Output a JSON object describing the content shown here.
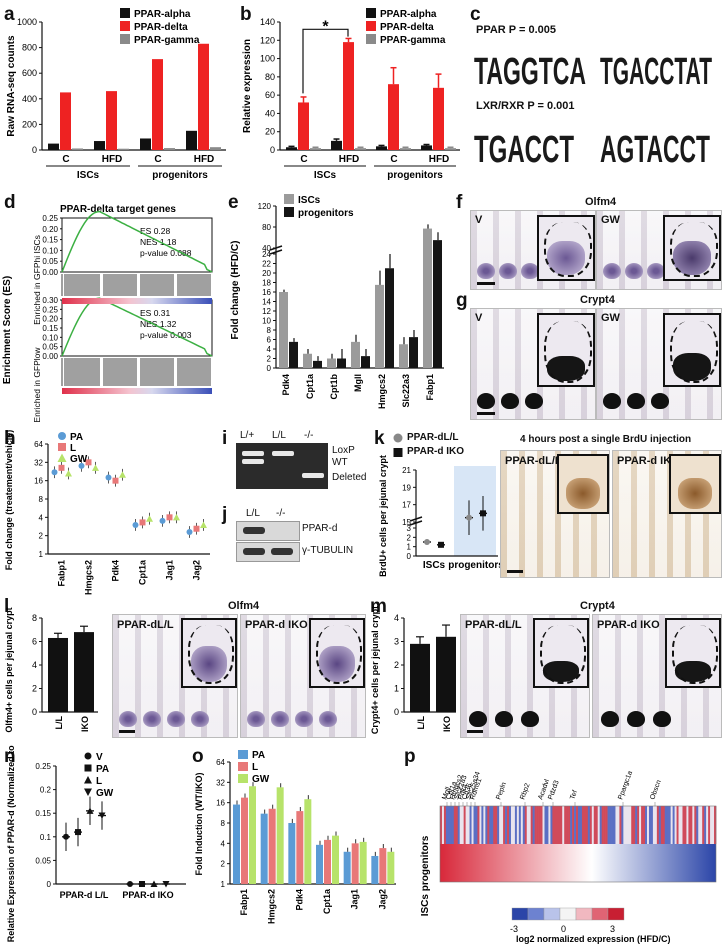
{
  "panel_labels": {
    "a": "a",
    "b": "b",
    "c": "c",
    "d": "d",
    "e": "e",
    "f": "f",
    "g": "g",
    "h": "h",
    "i": "i",
    "j": "j",
    "k": "k",
    "l": "l",
    "m": "m",
    "n": "n",
    "o": "o",
    "p": "p"
  },
  "colors": {
    "alpha": "#111111",
    "delta": "#ee2222",
    "gamma": "#8a8a8a",
    "isc": "#9b9b9b",
    "prog": "#151515",
    "pa": "#5b9bd5",
    "l": "#e87878",
    "gw": "#b7e36a",
    "gsea": "#3cb043"
  },
  "chart_data": [
    {
      "id": "a",
      "type": "bar",
      "ylabel": "Raw RNA-seq counts",
      "ylim": [
        0,
        1000
      ],
      "yticks": [
        0,
        200,
        400,
        600,
        800,
        1000
      ],
      "groups": [
        "C",
        "HFD",
        "C",
        "HFD"
      ],
      "group_labels": [
        "ISCs",
        "progenitors"
      ],
      "series": [
        {
          "name": "PPAR-alpha",
          "values": [
            50,
            70,
            90,
            150
          ]
        },
        {
          "name": "PPAR-delta",
          "values": [
            450,
            460,
            710,
            830
          ]
        },
        {
          "name": "PPAR-gamma",
          "values": [
            12,
            10,
            15,
            22
          ]
        }
      ]
    },
    {
      "id": "b",
      "type": "bar",
      "ylabel": "Relative expression",
      "ylim": [
        0,
        140
      ],
      "yticks": [
        0,
        20,
        40,
        60,
        80,
        100,
        120,
        140
      ],
      "groups": [
        "C",
        "HFD",
        "C",
        "HFD"
      ],
      "group_labels": [
        "ISCs",
        "progenitors"
      ],
      "annotation": "*",
      "series": [
        {
          "name": "PPAR-alpha",
          "values": [
            3,
            10,
            4,
            5
          ],
          "err": [
            1,
            2,
            1,
            1
          ]
        },
        {
          "name": "PPAR-delta",
          "values": [
            52,
            118,
            72,
            68
          ],
          "err": [
            6,
            4,
            18,
            15
          ]
        },
        {
          "name": "PPAR-gamma",
          "values": [
            2,
            2,
            2,
            2
          ],
          "err": [
            1,
            1,
            1,
            1
          ]
        }
      ]
    },
    {
      "id": "e",
      "type": "bar",
      "ylabel": "Fold change (HFD/C)",
      "yticks_low": [
        0,
        2,
        4,
        6,
        8,
        10,
        12,
        14,
        16,
        18,
        20,
        22,
        24
      ],
      "yticks_high": [
        40,
        80,
        120
      ],
      "categories": [
        "Pdk4",
        "Cpt1a",
        "Cpt1b",
        "Mgll",
        "Hmgcs2",
        "Slc22a3",
        "Fabp1"
      ],
      "series": [
        {
          "name": "ISCs",
          "values": [
            16,
            3,
            2,
            5.5,
            17.5,
            5,
            77
          ],
          "err": [
            0.5,
            1,
            1,
            1.5,
            3,
            1.5,
            8
          ]
        },
        {
          "name": "progenitors",
          "values": [
            5.5,
            1.5,
            2,
            2.5,
            21,
            6.5,
            55
          ],
          "err": [
            0.8,
            1,
            2,
            1.5,
            3,
            1.5,
            15
          ]
        }
      ]
    },
    {
      "id": "h",
      "type": "scatter",
      "ylabel": "Fold change (treatement/vehicle)",
      "yticks": [
        1,
        2,
        4,
        8,
        16,
        32,
        64
      ],
      "log": true,
      "categories": [
        "Fabp1",
        "Hmgcs2",
        "Pdk4",
        "Cpt1a",
        "Jag1",
        "Jag2"
      ],
      "series": [
        {
          "name": "PA",
          "values": [
            22,
            28,
            18,
            3,
            3.5,
            2.3
          ]
        },
        {
          "name": "L",
          "values": [
            26,
            32,
            16,
            3.3,
            4,
            2.6
          ]
        },
        {
          "name": "GW",
          "values": [
            21,
            26,
            20,
            3.8,
            4,
            3
          ]
        }
      ]
    },
    {
      "id": "k",
      "type": "scatter",
      "ylabel": "BrdU+ cells per jejunal crypt",
      "yticks": [
        0,
        1,
        2,
        3,
        15,
        17,
        19,
        21
      ],
      "categories": [
        "ISCs",
        "progenitors"
      ],
      "series": [
        {
          "name": "PPAR-d L/L",
          "values": [
            1.5,
            15.5
          ]
        },
        {
          "name": "PPAR-d IKO",
          "values": [
            1.2,
            16
          ]
        }
      ]
    },
    {
      "id": "l",
      "type": "bar",
      "ylabel": "Olfm4+ cells per jejunal crypt",
      "ylim": [
        0,
        8
      ],
      "yticks": [
        0,
        2,
        4,
        6,
        8
      ],
      "categories": [
        "L/L",
        "IKO"
      ],
      "values": [
        6.3,
        6.8
      ],
      "err": [
        0.4,
        0.5
      ]
    },
    {
      "id": "m",
      "type": "bar",
      "ylabel": "Crypt4+ cells per jejunal crypt",
      "ylim": [
        0,
        4
      ],
      "yticks": [
        0,
        1,
        2,
        3,
        4
      ],
      "categories": [
        "L/L",
        "IKO"
      ],
      "values": [
        2.9,
        3.2
      ],
      "err": [
        0.3,
        0.5
      ]
    },
    {
      "id": "n",
      "type": "scatter",
      "ylabel": "Relative Expression of PPAR-d (Normalized to Actin)",
      "ylim": [
        0,
        0.25
      ],
      "yticks": [
        0,
        0.05,
        0.1,
        0.15,
        0.2,
        0.25
      ],
      "categories": [
        "PPAR-d L/L",
        "PPAR-d IKO"
      ],
      "series": [
        {
          "name": "V",
          "values": [
            0.1,
            0.0
          ]
        },
        {
          "name": "PA",
          "values": [
            0.11,
            0.0
          ]
        },
        {
          "name": "L",
          "values": [
            0.155,
            0.0
          ]
        },
        {
          "name": "GW",
          "values": [
            0.145,
            0.0
          ]
        }
      ]
    },
    {
      "id": "o",
      "type": "bar",
      "ylabel": "Fold Induction (WT/IKO)",
      "log": true,
      "yticks": [
        1,
        2,
        4,
        8,
        16,
        32,
        64
      ],
      "categories": [
        "Fabp1",
        "Hmgcs2",
        "Pdk4",
        "Cpt1a",
        "Jag1",
        "Jag2"
      ],
      "series": [
        {
          "name": "PA",
          "values": [
            15,
            11,
            8,
            3.8,
            3,
            2.6
          ]
        },
        {
          "name": "L",
          "values": [
            19,
            13,
            12,
            4.5,
            4,
            3.4
          ]
        },
        {
          "name": "GW",
          "values": [
            28,
            27,
            18,
            5.2,
            4.2,
            3
          ]
        }
      ]
    }
  ],
  "a_legend": [
    "PPAR-alpha",
    "PPAR-delta",
    "PPAR-gamma"
  ],
  "c": {
    "ppar": "PPAR P = 0.005",
    "lxr": "LXR/RXR P = 0.001",
    "motif1": "TAGGTCA",
    "motif2": "TGACCTAT",
    "motif3": "TGACCT",
    "motif4": "AGTACCT"
  },
  "d": {
    "title": "PPAR-delta target genes",
    "yaxis": "Enrichment Score (ES)",
    "top_enriched": "Enriched in GFPhi ISCs",
    "bottom_enriched": "Enriched in GFPlow",
    "top_stats": [
      "ES 0.28",
      "NES 1.18",
      "p-value 0.088"
    ],
    "bottom_stats": [
      "ES 0.31",
      "NES 1.32",
      "p-value 0.003"
    ],
    "ticks_top": [
      "0.25",
      "0.20",
      "0.15",
      "0.10",
      "0.05",
      "0.00"
    ],
    "ticks_bottom": [
      "0.30",
      "0.25",
      "0.20",
      "0.15",
      "0.10",
      "0.05",
      "0.00"
    ]
  },
  "f": {
    "title": "Olfm4",
    "left": "V",
    "right": "GW"
  },
  "g": {
    "title": "Crypt4",
    "left": "V",
    "right": "GW"
  },
  "i": {
    "lanes": [
      "L/+",
      "L/L",
      "-/-"
    ],
    "bands": [
      "LoxP",
      "WT",
      "Deleted"
    ]
  },
  "j": {
    "lanes": [
      "L/L",
      "-/-"
    ],
    "bands": [
      "PPAR-d",
      "γ-TUBULIN"
    ]
  },
  "k": {
    "title": "4 hours post a single BrdU injection",
    "legend": [
      "PPAR-dL/L",
      "PPAR-d IKO"
    ],
    "img_left": "PPAR-dL/L",
    "img_right": "PPAR-d IKO",
    "xlabels": [
      "ISCs",
      "progenitors"
    ]
  },
  "l": {
    "title": "Olfm4",
    "img_left": "PPAR-dL/L",
    "img_right": "PPAR-d IKO"
  },
  "m": {
    "title": "Crypt4",
    "img_left": "PPAR-dL/L",
    "img_right": "PPAR-d IKO"
  },
  "p": {
    "ylabel": "ISCs progenitors",
    "genes": [
      "Mgll",
      "Cpt1a",
      "Hmgcs2",
      "Slc22a3",
      "Pdk4",
      "Cd36",
      "Slc25a34",
      "Rdms1",
      "Pepln",
      "Rbp2",
      "Acadvl",
      "Pdzd3",
      "Tef",
      "Ppargc1a",
      "Obscn"
    ],
    "scale": [
      "-3",
      "0",
      "3"
    ],
    "caption": "log2 normalized expression (HFD/C)"
  }
}
